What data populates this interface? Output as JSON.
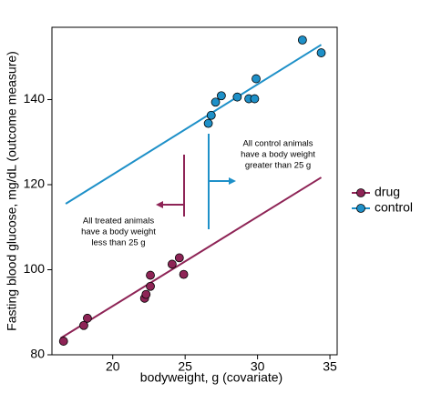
{
  "chart_data": {
    "type": "scatter",
    "xlabel": "bodyweight, g (covariate)",
    "ylabel": "Fasting blood glucose, mg/dL (outcome measure)",
    "xlim": [
      15.8,
      35.5
    ],
    "xticks": [
      20,
      25,
      30,
      35
    ],
    "ylim": [
      80,
      157
    ],
    "yticks": [
      80,
      100,
      120,
      140
    ],
    "series": [
      {
        "name": "drug",
        "color": "#8e2456",
        "x": [
          16.6,
          18.0,
          18.25,
          22.2,
          22.3,
          22.6,
          22.6,
          24.1,
          24.6,
          24.9
        ],
        "values": [
          83.2,
          86.9,
          88.6,
          93.3,
          94.2,
          96.1,
          98.7,
          101.3,
          102.8,
          98.9
        ],
        "fit": {
          "x": [
            16.4,
            34.4
          ],
          "values": [
            83.9,
            121.7
          ]
        }
      },
      {
        "name": "control",
        "color": "#1e90c8",
        "x": [
          26.6,
          26.8,
          27.1,
          27.5,
          28.6,
          29.4,
          29.8,
          29.9,
          33.1,
          34.4
        ],
        "values": [
          134.4,
          136.3,
          139.4,
          140.9,
          140.6,
          140.2,
          140.2,
          144.9,
          154.0,
          151.0
        ],
        "fit": {
          "x": [
            16.75,
            34.4
          ],
          "values": [
            115.5,
            152.9
          ]
        }
      }
    ],
    "annotations": [
      {
        "lines": [
          "All control animals",
          "have a body weight",
          "greater than 25 g"
        ]
      },
      {
        "lines": [
          "All treated animals",
          "have a body weight",
          "less than 25 g"
        ]
      }
    ]
  }
}
